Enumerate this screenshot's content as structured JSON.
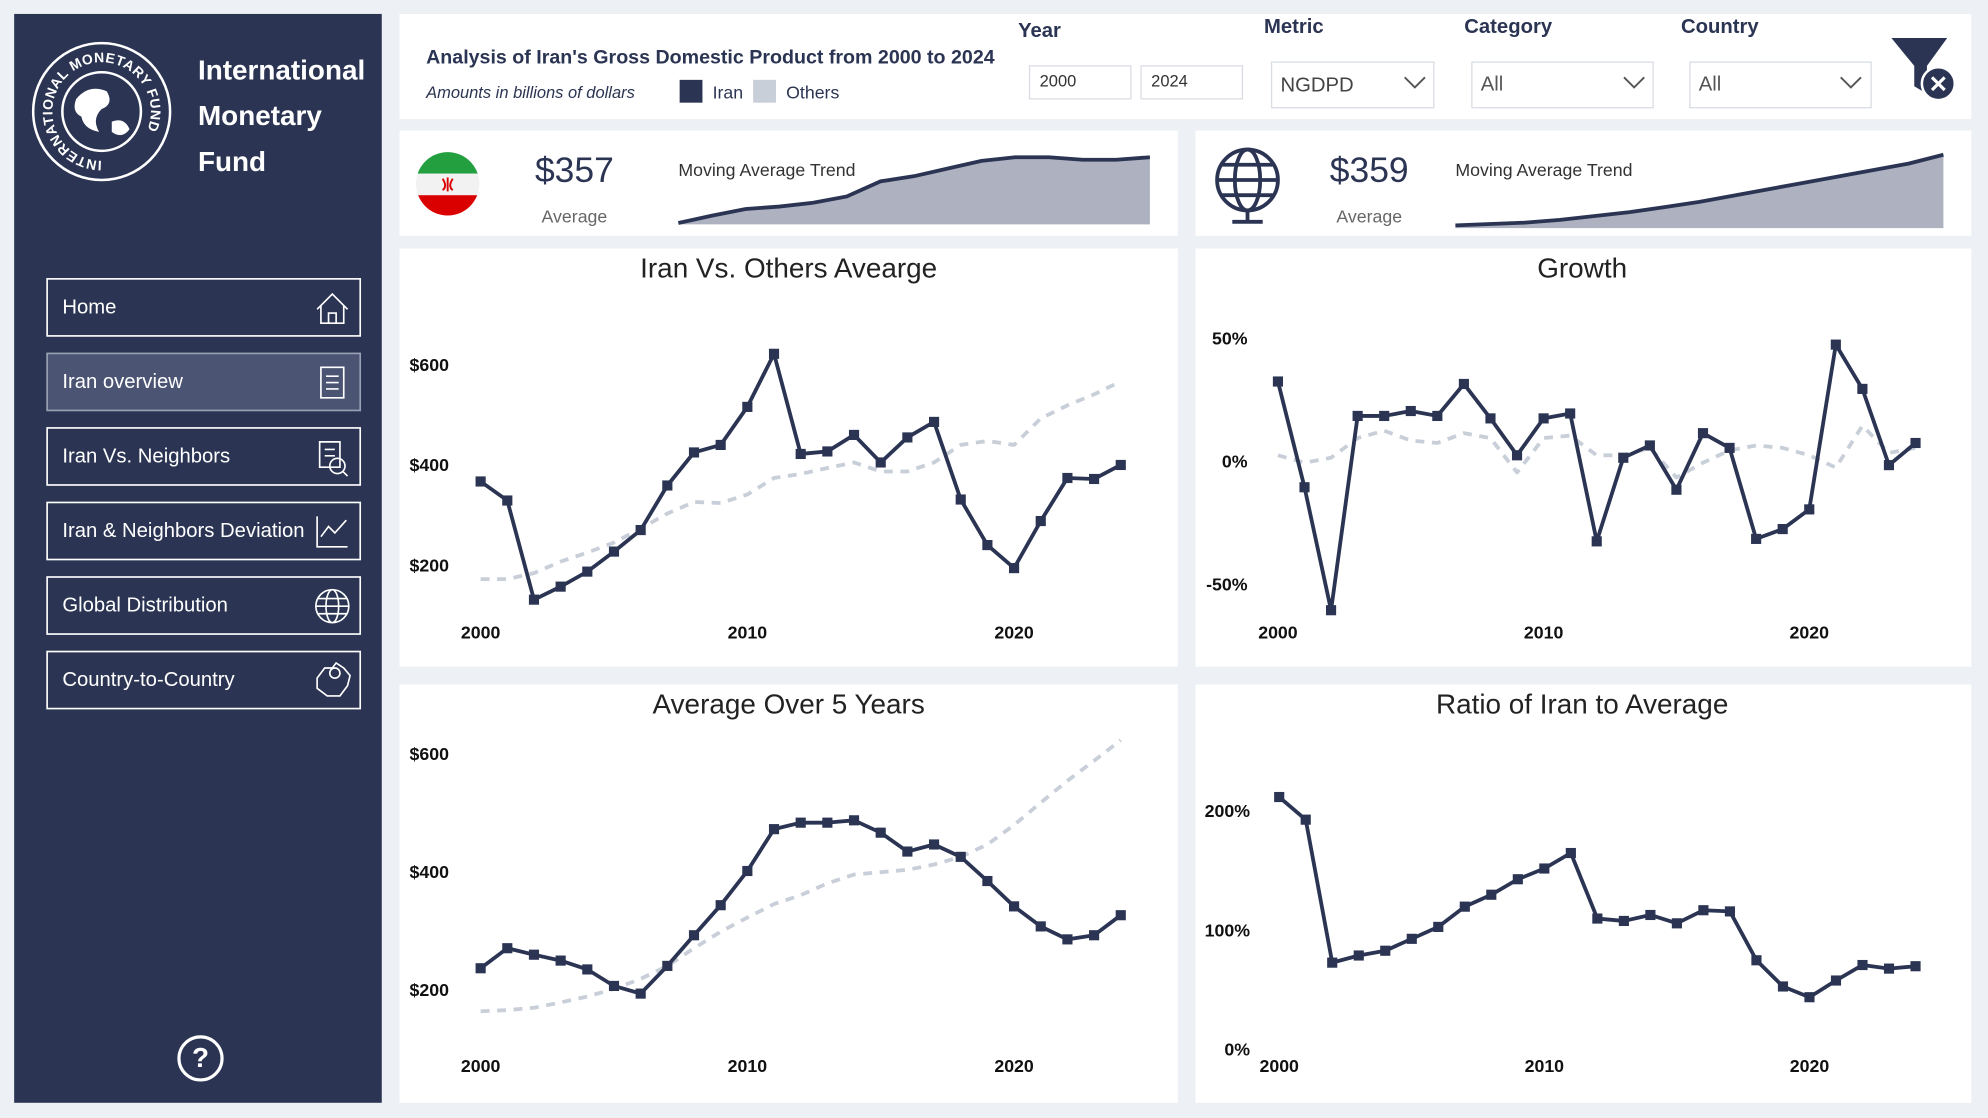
{
  "sidebar": {
    "logo_ring": "INTERNATIONAL MONETARY FUND",
    "org_name": [
      "International",
      "Monetary",
      "Fund"
    ],
    "nav": [
      "Home",
      "Iran overview",
      "Iran Vs. Neighbors",
      "Iran & Neighbors Deviation",
      "Global Distribution",
      "Country-to-Country"
    ],
    "active": 1,
    "help": "?"
  },
  "header": {
    "title": "Analysis of Iran's Gross Domestic Product from 2000 to 2024",
    "subtitle": "Amounts in billions of dollars"
  },
  "filters": {
    "year_label": "Year",
    "year_from": "2000",
    "year_to": "2024",
    "metric_label": "Metric",
    "metric": "NGDPD",
    "category_label": "Category",
    "category": "All",
    "country_label": "Country",
    "country": "All"
  },
  "kpis": [
    {
      "value": "$357",
      "label": "Average",
      "trend_title": "Moving Average Trend",
      "trend_values": [
        155,
        182,
        206,
        215,
        229,
        252,
        307,
        326,
        354,
        382,
        395,
        395,
        386,
        386,
        395
      ],
      "trend_ylim": [
        150,
        400
      ]
    },
    {
      "value": "$359",
      "label": "Average",
      "trend_title": "Moving Average Trend",
      "trend_values": [
        150,
        155,
        160,
        170,
        184,
        198,
        216,
        235,
        258,
        281,
        304,
        327,
        350,
        373,
        405
      ],
      "trend_ylim": [
        140,
        410
      ]
    }
  ],
  "chart_data": [
    {
      "type": "line",
      "title": "Iran Vs. Others Avearge",
      "x": [
        2000,
        2001,
        2002,
        2003,
        2004,
        2005,
        2006,
        2007,
        2008,
        2009,
        2010,
        2011,
        2012,
        2013,
        2014,
        2015,
        2016,
        2017,
        2018,
        2019,
        2020,
        2021,
        2022,
        2023,
        2024
      ],
      "xlim": [
        2000,
        2024
      ],
      "xticks": [
        2000,
        2010,
        2020
      ],
      "ylim": [
        100,
        700
      ],
      "yticks": [
        {
          "value": 200,
          "label": "$200"
        },
        {
          "value": 400,
          "label": "$400"
        },
        {
          "value": 600,
          "label": "$600"
        }
      ],
      "grid": false,
      "series": [
        {
          "name": "Iran",
          "color": "#2b3553",
          "style": "solid",
          "markers": true,
          "values": [
            370,
            332,
            134,
            160,
            190,
            230,
            273,
            362,
            428,
            443,
            519,
            625,
            425,
            430,
            463,
            408,
            458,
            489,
            334,
            243,
            197,
            291,
            377,
            375,
            403
          ]
        },
        {
          "name": "Others",
          "color": "#c9cfd9",
          "style": "dashed",
          "markers": false,
          "values": [
            175,
            175,
            187,
            210,
            228,
            248,
            276,
            306,
            329,
            327,
            344,
            377,
            385,
            397,
            408,
            390,
            390,
            408,
            443,
            451,
            443,
            496,
            522,
            544,
            570
          ]
        }
      ]
    },
    {
      "type": "line",
      "title": "Growth",
      "x": [
        2000,
        2001,
        2002,
        2003,
        2004,
        2005,
        2006,
        2007,
        2008,
        2009,
        2010,
        2011,
        2012,
        2013,
        2014,
        2015,
        2016,
        2017,
        2018,
        2019,
        2020,
        2021,
        2022,
        2023,
        2024
      ],
      "xlim": [
        2000,
        2024
      ],
      "xticks": [
        2000,
        2010,
        2020
      ],
      "ylim": [
        -70,
        60
      ],
      "yticks": [
        {
          "value": -50,
          "label": "-50%"
        },
        {
          "value": 0,
          "label": "0%"
        },
        {
          "value": 50,
          "label": "50%"
        }
      ],
      "grid": false,
      "series": [
        {
          "name": "Iran",
          "color": "#2b3553",
          "style": "solid",
          "markers": true,
          "values": [
            33,
            -10,
            -60,
            19,
            19,
            21,
            19,
            32,
            18,
            3,
            18,
            20,
            -32,
            2,
            7,
            -11,
            12,
            6,
            -31,
            -27,
            -19,
            48,
            30,
            -1,
            8
          ]
        },
        {
          "name": "Others",
          "color": "#c9cfd9",
          "style": "dashed",
          "markers": false,
          "values": [
            3,
            0,
            2,
            10,
            13,
            9,
            8,
            12,
            10,
            -4,
            10,
            11,
            3,
            3,
            6,
            -6,
            0,
            5,
            7,
            6,
            3,
            -2,
            15,
            4,
            6
          ]
        }
      ]
    },
    {
      "type": "line",
      "title": "Average Over 5 Years",
      "x": [
        2000,
        2001,
        2002,
        2003,
        2004,
        2005,
        2006,
        2007,
        2008,
        2009,
        2010,
        2011,
        2012,
        2013,
        2014,
        2015,
        2016,
        2017,
        2018,
        2019,
        2020,
        2021,
        2022,
        2023,
        2024
      ],
      "xlim": [
        2000,
        2024
      ],
      "xticks": [
        2000,
        2010,
        2020
      ],
      "ylim": [
        150,
        650
      ],
      "yticks": [
        {
          "value": 200,
          "label": "$200"
        },
        {
          "value": 400,
          "label": "$400"
        },
        {
          "value": 600,
          "label": "$600"
        }
      ],
      "grid": false,
      "series": [
        {
          "name": "Iran",
          "color": "#2b3553",
          "style": "solid",
          "markers": true,
          "values": [
            239,
            273,
            262,
            252,
            237,
            209,
            196,
            243,
            295,
            346,
            404,
            475,
            486,
            486,
            490,
            469,
            437,
            449,
            428,
            387,
            344,
            310,
            288,
            295,
            329
          ]
        },
        {
          "name": "Others",
          "color": "#c9cfd9",
          "style": "dashed",
          "markers": false,
          "values": [
            166,
            168,
            172,
            181,
            191,
            204,
            221,
            243,
            273,
            301,
            325,
            348,
            363,
            383,
            398,
            402,
            406,
            415,
            428,
            449,
            482,
            520,
            557,
            591,
            626
          ]
        }
      ]
    },
    {
      "type": "line",
      "title": "Ratio of Iran to Average",
      "x": [
        2000,
        2001,
        2002,
        2003,
        2004,
        2005,
        2006,
        2007,
        2008,
        2009,
        2010,
        2011,
        2012,
        2013,
        2014,
        2015,
        2016,
        2017,
        2018,
        2019,
        2020,
        2021,
        2022,
        2023,
        2024
      ],
      "xlim": [
        2000,
        2024
      ],
      "xticks": [
        2000,
        2010,
        2020
      ],
      "ylim": [
        0,
        230
      ],
      "yticks": [
        {
          "value": 0,
          "label": "0%"
        },
        {
          "value": 100,
          "label": "100%"
        },
        {
          "value": 200,
          "label": "200%"
        }
      ],
      "grid": false,
      "series": [
        {
          "name": "Iran",
          "color": "#2b3553",
          "style": "solid",
          "markers": true,
          "values": [
            213,
            194,
            74,
            80,
            84,
            94,
            104,
            121,
            131,
            144,
            153,
            166,
            111,
            109,
            114,
            107,
            118,
            117,
            76,
            54,
            45,
            59,
            72,
            69,
            71
          ]
        }
      ]
    }
  ]
}
